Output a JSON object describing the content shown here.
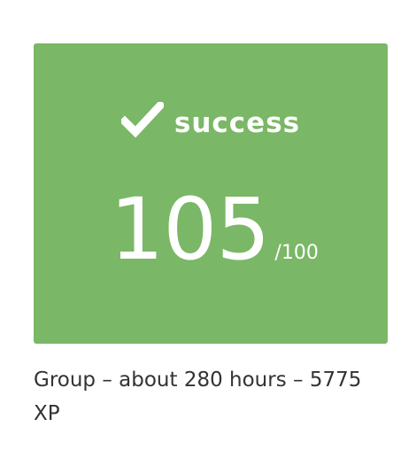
{
  "card": {
    "status_label": "success",
    "status_icon": "checkmark-icon",
    "score": "105",
    "score_max": "/100",
    "background_color": "#7ab766",
    "text_color": "#ffffff"
  },
  "caption": {
    "text": "Group – about 280 hours – 5775 XP"
  }
}
